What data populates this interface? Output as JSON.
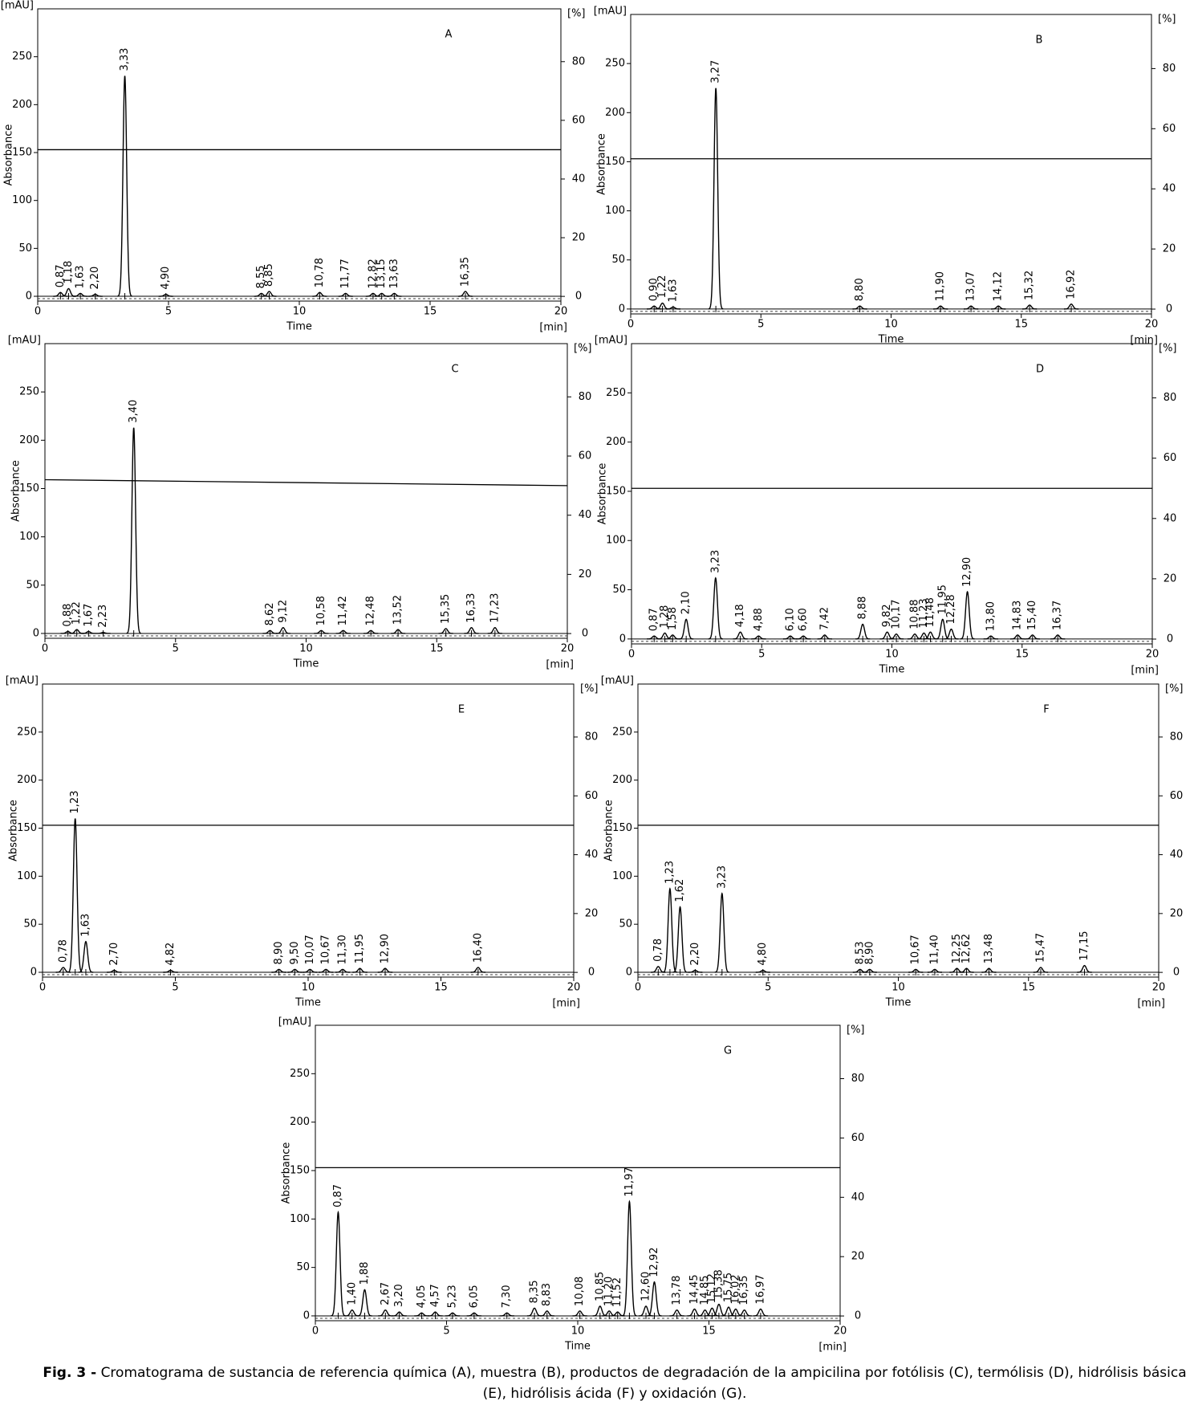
{
  "chart_data": [
    {
      "type": "line",
      "title": "A",
      "x_label": "Time",
      "x_unit": "[min]",
      "y_label": "Absorbance",
      "y_unit": "[mAU]",
      "y2_unit": "[%]",
      "xlim": [
        0,
        20
      ],
      "xticks": [
        0,
        5,
        10,
        15,
        20
      ],
      "ylim": [
        -5,
        300
      ],
      "yticks": [
        0,
        50,
        100,
        150,
        200,
        250
      ],
      "y2lim": [
        -1.6,
        98
      ],
      "y2ticks": [
        0,
        20,
        40,
        60,
        80
      ],
      "y2_line": [
        50,
        50
      ],
      "x": [
        {
          "value": 0.87,
          "label": "0,87"
        },
        {
          "value": 1.18,
          "label": "1,18"
        },
        {
          "value": 1.63,
          "label": "1,63"
        },
        {
          "value": 2.2,
          "label": "2,20"
        },
        {
          "value": 3.33,
          "label": "3,33"
        },
        {
          "value": 4.9,
          "label": "4,90"
        },
        {
          "value": 8.55,
          "label": "8,55"
        },
        {
          "value": 8.85,
          "label": "8,85"
        },
        {
          "value": 10.78,
          "label": "10,78"
        },
        {
          "value": 11.77,
          "label": "11,77"
        },
        {
          "value": 12.82,
          "label": "12,82"
        },
        {
          "value": 13.15,
          "label": "13,15"
        },
        {
          "value": 13.63,
          "label": "13,63"
        },
        {
          "value": 16.35,
          "label": "16,35"
        }
      ],
      "values": [
        4,
        8,
        3,
        2,
        230,
        2,
        3,
        5,
        4,
        3,
        3,
        3,
        3,
        5
      ]
    },
    {
      "type": "line",
      "title": "B",
      "x_label": "Time",
      "x_unit": "[min]",
      "y_label": "Absorbance",
      "y_unit": "[mAU]",
      "y2_unit": "[%]",
      "xlim": [
        0,
        20
      ],
      "xticks": [
        0,
        5,
        10,
        15,
        20
      ],
      "ylim": [
        -5,
        300
      ],
      "yticks": [
        0,
        50,
        100,
        150,
        200,
        250
      ],
      "y2lim": [
        -1.6,
        98
      ],
      "y2ticks": [
        0,
        20,
        40,
        60,
        80
      ],
      "y2_line": [
        50,
        50
      ],
      "x": [
        {
          "value": 0.9,
          "label": "0,90"
        },
        {
          "value": 1.22,
          "label": "1,22"
        },
        {
          "value": 1.63,
          "label": "1,63"
        },
        {
          "value": 3.27,
          "label": "3,27"
        },
        {
          "value": 8.8,
          "label": "8,80"
        },
        {
          "value": 11.9,
          "label": "11,90"
        },
        {
          "value": 13.07,
          "label": "13,07"
        },
        {
          "value": 14.12,
          "label": "14,12"
        },
        {
          "value": 15.32,
          "label": "15,32"
        },
        {
          "value": 16.92,
          "label": "16,92"
        }
      ],
      "values": [
        3,
        6,
        2,
        225,
        3,
        3,
        3,
        3,
        4,
        5
      ]
    },
    {
      "type": "line",
      "title": "C",
      "x_label": "Time",
      "x_unit": "[min]",
      "y_label": "Absorbance",
      "y_unit": "[mAU]",
      "y2_unit": "[%]",
      "xlim": [
        0,
        20
      ],
      "xticks": [
        0,
        5,
        10,
        15,
        20
      ],
      "ylim": [
        -5,
        300
      ],
      "yticks": [
        0,
        50,
        100,
        150,
        200,
        250
      ],
      "y2lim": [
        -1.6,
        98
      ],
      "y2ticks": [
        0,
        20,
        40,
        60,
        80
      ],
      "y2_line": [
        52,
        50
      ],
      "x": [
        {
          "value": 0.88,
          "label": "0,88"
        },
        {
          "value": 1.22,
          "label": "1,22"
        },
        {
          "value": 1.67,
          "label": "1,67"
        },
        {
          "value": 2.23,
          "label": "2,23"
        },
        {
          "value": 3.4,
          "label": "3,40"
        },
        {
          "value": 8.62,
          "label": "8,62"
        },
        {
          "value": 9.12,
          "label": "9,12"
        },
        {
          "value": 10.58,
          "label": "10,58"
        },
        {
          "value": 11.42,
          "label": "11,42"
        },
        {
          "value": 12.48,
          "label": "12,48"
        },
        {
          "value": 13.52,
          "label": "13,52"
        },
        {
          "value": 15.35,
          "label": "15,35"
        },
        {
          "value": 16.33,
          "label": "16,33"
        },
        {
          "value": 17.23,
          "label": "17,23"
        }
      ],
      "values": [
        2,
        4,
        2,
        1,
        213,
        3,
        6,
        3,
        3,
        3,
        4,
        5,
        6,
        6
      ]
    },
    {
      "type": "line",
      "title": "D",
      "x_label": "Time",
      "x_unit": "[min]",
      "y_label": "Absorbance",
      "y_unit": "[mAU]",
      "y2_unit": "[%]",
      "xlim": [
        0,
        20
      ],
      "xticks": [
        0,
        5,
        10,
        15,
        20
      ],
      "ylim": [
        -5,
        300
      ],
      "yticks": [
        0,
        50,
        100,
        150,
        200,
        250
      ],
      "y2lim": [
        -1.6,
        98
      ],
      "y2ticks": [
        0,
        20,
        40,
        60,
        80
      ],
      "y2_line": [
        50,
        50
      ],
      "x": [
        {
          "value": 0.87,
          "label": "0,87"
        },
        {
          "value": 1.28,
          "label": "1,28"
        },
        {
          "value": 1.58,
          "label": "1,58"
        },
        {
          "value": 2.1,
          "label": "2,10"
        },
        {
          "value": 3.23,
          "label": "3,23"
        },
        {
          "value": 4.18,
          "label": "4,18"
        },
        {
          "value": 4.88,
          "label": "4,88"
        },
        {
          "value": 6.1,
          "label": "6,10"
        },
        {
          "value": 6.6,
          "label": "6,60"
        },
        {
          "value": 7.42,
          "label": "7,42"
        },
        {
          "value": 8.88,
          "label": "8,88"
        },
        {
          "value": 9.82,
          "label": "9,82"
        },
        {
          "value": 10.17,
          "label": "10,17"
        },
        {
          "value": 10.88,
          "label": "10,88"
        },
        {
          "value": 11.23,
          "label": "11,23"
        },
        {
          "value": 11.48,
          "label": "11,48"
        },
        {
          "value": 11.95,
          "label": "11,95"
        },
        {
          "value": 12.28,
          "label": "12,28"
        },
        {
          "value": 12.9,
          "label": "12,90"
        },
        {
          "value": 13.8,
          "label": "13,80"
        },
        {
          "value": 14.83,
          "label": "14,83"
        },
        {
          "value": 15.4,
          "label": "15,40"
        },
        {
          "value": 16.37,
          "label": "16,37"
        }
      ],
      "values": [
        3,
        6,
        4,
        20,
        62,
        7,
        3,
        3,
        3,
        4,
        15,
        7,
        5,
        5,
        6,
        7,
        20,
        10,
        48,
        3,
        4,
        4,
        4
      ]
    },
    {
      "type": "line",
      "title": "E",
      "x_label": "Time",
      "x_unit": "[min]",
      "y_label": "Absorbance",
      "y_unit": "[mAU]",
      "y2_unit": "[%]",
      "xlim": [
        0,
        20
      ],
      "xticks": [
        0,
        5,
        10,
        15,
        20
      ],
      "ylim": [
        -5,
        300
      ],
      "yticks": [
        0,
        50,
        100,
        150,
        200,
        250
      ],
      "y2lim": [
        -1.6,
        98
      ],
      "y2ticks": [
        0,
        20,
        40,
        60,
        80
      ],
      "y2_line": [
        50,
        50
      ],
      "x": [
        {
          "value": 0.78,
          "label": "0,78"
        },
        {
          "value": 1.23,
          "label": "1,23"
        },
        {
          "value": 1.63,
          "label": "1,63"
        },
        {
          "value": 2.7,
          "label": "2,70"
        },
        {
          "value": 4.82,
          "label": "4,82"
        },
        {
          "value": 8.9,
          "label": "8,90"
        },
        {
          "value": 9.5,
          "label": "9,50"
        },
        {
          "value": 10.07,
          "label": "10,07"
        },
        {
          "value": 10.67,
          "label": "10,67"
        },
        {
          "value": 11.3,
          "label": "11,30"
        },
        {
          "value": 11.95,
          "label": "11,95"
        },
        {
          "value": 12.9,
          "label": "12,90"
        },
        {
          "value": 16.4,
          "label": "16,40"
        }
      ],
      "values": [
        5,
        160,
        32,
        2,
        2,
        3,
        3,
        3,
        3,
        3,
        4,
        4,
        5
      ]
    },
    {
      "type": "line",
      "title": "F",
      "x_label": "Time",
      "x_unit": "[min]",
      "y_label": "Absorbance",
      "y_unit": "[mAU]",
      "y2_unit": "[%]",
      "xlim": [
        0,
        20
      ],
      "xticks": [
        0,
        5,
        10,
        15,
        20
      ],
      "ylim": [
        -5,
        300
      ],
      "yticks": [
        0,
        50,
        100,
        150,
        200,
        250
      ],
      "y2lim": [
        -1.6,
        98
      ],
      "y2ticks": [
        0,
        20,
        40,
        60,
        80
      ],
      "y2_line": [
        50,
        50
      ],
      "x": [
        {
          "value": 0.78,
          "label": "0,78"
        },
        {
          "value": 1.23,
          "label": "1,23"
        },
        {
          "value": 1.62,
          "label": "1,62"
        },
        {
          "value": 2.2,
          "label": "2,20"
        },
        {
          "value": 3.23,
          "label": "3,23"
        },
        {
          "value": 4.8,
          "label": "4,80"
        },
        {
          "value": 8.53,
          "label": "8,53"
        },
        {
          "value": 8.9,
          "label": "8,90"
        },
        {
          "value": 10.67,
          "label": "10,67"
        },
        {
          "value": 11.4,
          "label": "11,40"
        },
        {
          "value": 12.25,
          "label": "12,25"
        },
        {
          "value": 12.62,
          "label": "12,62"
        },
        {
          "value": 13.48,
          "label": "13,48"
        },
        {
          "value": 15.47,
          "label": "15,47"
        },
        {
          "value": 17.15,
          "label": "17,15"
        }
      ],
      "values": [
        6,
        87,
        68,
        2,
        82,
        2,
        3,
        3,
        3,
        3,
        4,
        4,
        4,
        5,
        7
      ]
    },
    {
      "type": "line",
      "title": "G",
      "x_label": "Time",
      "x_unit": "[min]",
      "y_label": "Absorbance",
      "y_unit": "[mAU]",
      "y2_unit": "[%]",
      "xlim": [
        0,
        20
      ],
      "xticks": [
        0,
        5,
        10,
        15,
        20
      ],
      "ylim": [
        -5,
        300
      ],
      "yticks": [
        0,
        50,
        100,
        150,
        200,
        250
      ],
      "y2lim": [
        -1.6,
        98
      ],
      "y2ticks": [
        0,
        20,
        40,
        60,
        80
      ],
      "y2_line": [
        50,
        50
      ],
      "x": [
        {
          "value": 0.87,
          "label": "0,87"
        },
        {
          "value": 1.4,
          "label": "1,40"
        },
        {
          "value": 1.88,
          "label": "1,88"
        },
        {
          "value": 2.67,
          "label": "2,67"
        },
        {
          "value": 3.2,
          "label": "3,20"
        },
        {
          "value": 4.05,
          "label": "4,05"
        },
        {
          "value": 4.57,
          "label": "4,57"
        },
        {
          "value": 5.23,
          "label": "5,23"
        },
        {
          "value": 6.05,
          "label": "6,05"
        },
        {
          "value": 7.3,
          "label": "7,30"
        },
        {
          "value": 8.35,
          "label": "8,35"
        },
        {
          "value": 8.83,
          "label": "8,83"
        },
        {
          "value": 10.08,
          "label": "10,08"
        },
        {
          "value": 10.85,
          "label": "10,85"
        },
        {
          "value": 11.2,
          "label": "11,20"
        },
        {
          "value": 11.52,
          "label": "11,52"
        },
        {
          "value": 11.97,
          "label": "11,97"
        },
        {
          "value": 12.6,
          "label": "12,60"
        },
        {
          "value": 12.92,
          "label": "12,92"
        },
        {
          "value": 13.78,
          "label": "13,78"
        },
        {
          "value": 14.45,
          "label": "14,45"
        },
        {
          "value": 14.85,
          "label": "14,85"
        },
        {
          "value": 15.12,
          "label": "15,12"
        },
        {
          "value": 15.38,
          "label": "15,38"
        },
        {
          "value": 15.75,
          "label": "15,75"
        },
        {
          "value": 16.02,
          "label": "16,02"
        },
        {
          "value": 16.35,
          "label": "16,35"
        },
        {
          "value": 16.97,
          "label": "16,97"
        }
      ],
      "values": [
        107,
        6,
        27,
        6,
        4,
        3,
        4,
        3,
        3,
        3,
        8,
        5,
        5,
        10,
        5,
        4,
        118,
        10,
        35,
        6,
        7,
        6,
        8,
        12,
        9,
        7,
        6,
        7
      ]
    }
  ],
  "caption": {
    "lead": "Fig. 3 -",
    "text": "Cromatograma de sustancia de referencia química (A), muestra (B), productos de degradación de la ampicilina por fotólisis (C), termólisis (D), hidrólisis básica (E), hidrólisis ácida (F) y oxidación (G)."
  }
}
